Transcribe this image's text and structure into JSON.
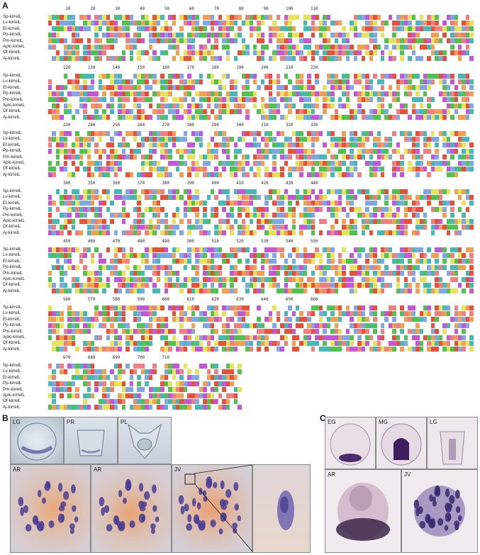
{
  "panel_letters": {
    "a": "A",
    "b": "B",
    "c": "C"
  },
  "species": [
    "Sp-kirrelL",
    "Lv-kirrelL",
    "Et-kirrelL",
    "Pp-kirrelL",
    "Pm-kirrelL",
    "Aplc-kirrelL",
    "Of-kirrelL",
    "Aj-kirrelL"
  ],
  "blocks": [
    {
      "ruler": "       10        20        30        40        50        60        70        80        90       100       110",
      "species_count": 8
    },
    {
      "ruler": "      120       130       140       150       160       170       180       190       200       210       220",
      "species_count": 8
    },
    {
      "ruler": "      230       240       250       260       270       280       290       300       310       320       330",
      "species_count": 8
    },
    {
      "ruler": "      340       350       360       370       380       390       400       410       420       430       440",
      "species_count": 8
    },
    {
      "ruler": "      450       460       470       480       490       500       510       520       530       540       550",
      "species_count": 8
    },
    {
      "ruler": "      560       570       580       590       600       610       620       630       640       650       660",
      "species_count": 8
    },
    {
      "ruler": "      670       680       690       700       710",
      "species_count": 8
    }
  ],
  "panel_b": {
    "top_labels": [
      "LG",
      "PR",
      "PL"
    ],
    "bottom_labels": [
      "AR",
      "AR",
      "JV"
    ]
  },
  "panel_c": {
    "top_labels": [
      "EG",
      "MG",
      "LG"
    ],
    "bottom_labels": [
      "AR",
      "JV"
    ]
  },
  "colors": {
    "blue": "#7fa7e6",
    "green": "#4fc24f",
    "red": "#e8503a",
    "magenta": "#c456d8",
    "orange": "#f0a050",
    "yellow": "#e6e35a",
    "cyan": "#46b8b8",
    "pink": "#f08080"
  }
}
